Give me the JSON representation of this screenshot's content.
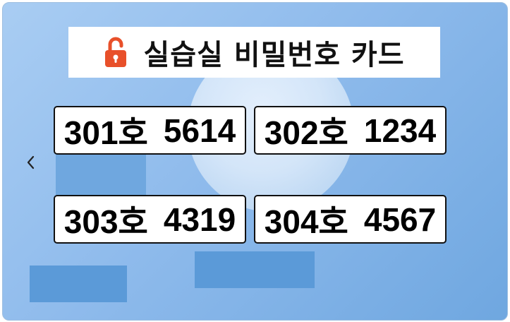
{
  "title": {
    "icon": "unlocked-padlock-icon",
    "text": "실습실 비밀번호 카드"
  },
  "rooms": [
    {
      "room": "301호",
      "code": "5614"
    },
    {
      "room": "302호",
      "code": "1234"
    },
    {
      "room": "303호",
      "code": "4319"
    },
    {
      "room": "304호",
      "code": "4567"
    }
  ],
  "nav": {
    "prev_icon": "chevron-left-icon"
  },
  "colors": {
    "background": "#8fbbec",
    "accent_block": "#5b9ad8",
    "lock": "#e8502a",
    "text": "#000000"
  }
}
